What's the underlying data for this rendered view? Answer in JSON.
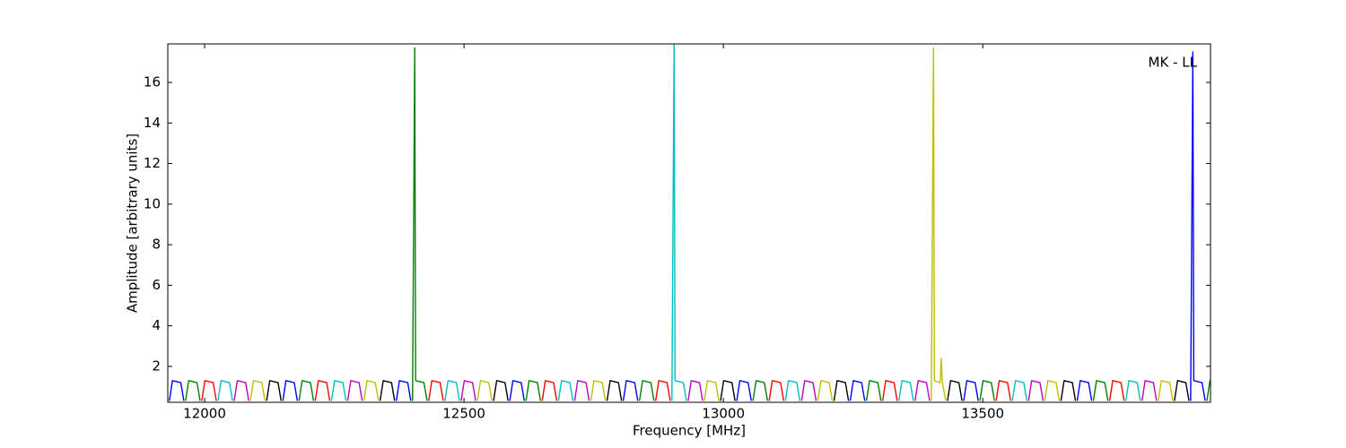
{
  "chart_data": {
    "type": "line",
    "x_label": "Frequency [MHz]",
    "y_label": "Amplitude [arbitrary units]",
    "annotation": "MK - LL",
    "xlim": [
      11929,
      13939
    ],
    "xticks": [
      12000,
      12500,
      13000,
      13500
    ],
    "ylim": [
      0.23,
      17.9
    ],
    "yticks": [
      2,
      4,
      6,
      8,
      10,
      12,
      14,
      16
    ],
    "grid": false,
    "series": [
      {
        "color": "#0000ff",
        "x": [
          11932,
          11938,
          11954,
          11960,
          null,
          12150.75,
          12156.75,
          12172.75,
          12178.75,
          null,
          12369.5,
          12375.5,
          12391.5,
          12397.5,
          null,
          12588.25,
          12594.25,
          12610.25,
          12616.25,
          null,
          12807,
          12813,
          12829,
          12835,
          null,
          13025.75,
          13031.75,
          13047.75,
          13053.75,
          null,
          13244.5,
          13250.5,
          13266.5,
          13272.5,
          null,
          13463.25,
          13469.25,
          13485.25,
          13491.25,
          null,
          13682,
          13688,
          13704,
          13710,
          null,
          13900.75,
          13905,
          13906.75,
          13922.75,
          13928.75
        ],
        "values": [
          0.3,
          1.3,
          1.2,
          0.3,
          null,
          0.3,
          1.3,
          1.2,
          0.3,
          null,
          0.3,
          1.3,
          1.2,
          0.3,
          null,
          0.3,
          1.3,
          1.2,
          0.3,
          null,
          0.3,
          1.3,
          1.2,
          0.3,
          null,
          0.3,
          1.3,
          1.2,
          0.3,
          null,
          0.3,
          1.3,
          1.2,
          0.3,
          null,
          0.3,
          1.3,
          1.2,
          0.3,
          null,
          0.3,
          1.3,
          1.2,
          0.3,
          null,
          0.3,
          17.5,
          1.3,
          1.2,
          0.3
        ]
      },
      {
        "color": "#008000",
        "x": [
          11963.25,
          11969.25,
          11985.25,
          11991.25,
          null,
          12182,
          12188,
          12204,
          12210,
          null,
          12400.75,
          12405,
          12406.75,
          12422.75,
          12428.75,
          null,
          12619.5,
          12625.5,
          12641.5,
          12647.5,
          null,
          12838.25,
          12844.25,
          12860.25,
          12866.25,
          null,
          13057,
          13063,
          13079,
          13085,
          null,
          13275.75,
          13281.75,
          13297.75,
          13303.75,
          null,
          13494.5,
          13500.5,
          13516.5,
          13522.5,
          null,
          13713.25,
          13719.25,
          13735.25,
          13741.25,
          null,
          13932,
          13938,
          13954,
          13960
        ],
        "values": [
          0.3,
          1.3,
          1.2,
          0.3,
          null,
          0.3,
          1.3,
          1.2,
          0.3,
          null,
          0.3,
          17.7,
          1.3,
          1.2,
          0.3,
          null,
          0.3,
          1.3,
          1.2,
          0.3,
          null,
          0.3,
          1.3,
          1.2,
          0.3,
          null,
          0.3,
          1.3,
          1.2,
          0.3,
          null,
          0.3,
          1.3,
          1.2,
          0.3,
          null,
          0.3,
          1.3,
          1.2,
          0.3,
          null,
          0.3,
          1.3,
          1.2,
          0.3,
          null,
          0.3,
          1.3,
          1.2,
          0.3
        ]
      },
      {
        "color": "#ff0000",
        "x": [
          11994.5,
          12000.5,
          12016.5,
          12022.5,
          null,
          12213.25,
          12219.25,
          12235.25,
          12241.25,
          null,
          12432,
          12438,
          12454,
          12460,
          null,
          12650.75,
          12656.75,
          12672.75,
          12678.75,
          null,
          12869.5,
          12875.5,
          12891.5,
          12897.5,
          null,
          13088.25,
          13094.25,
          13110.25,
          13116.25,
          null,
          13307,
          13313,
          13329,
          13335,
          null,
          13525.75,
          13531.75,
          13547.75,
          13553.75,
          null,
          13744.5,
          13750.5,
          13766.5,
          13772.5
        ],
        "values": [
          0.3,
          1.3,
          1.2,
          0.3,
          null,
          0.3,
          1.3,
          1.2,
          0.3,
          null,
          0.3,
          1.3,
          1.2,
          0.3,
          null,
          0.3,
          1.3,
          1.2,
          0.3,
          null,
          0.3,
          1.3,
          1.2,
          0.3,
          null,
          0.3,
          1.3,
          1.2,
          0.3,
          null,
          0.3,
          1.3,
          1.2,
          0.3,
          null,
          0.3,
          1.3,
          1.2,
          0.3,
          null,
          0.3,
          1.3,
          1.2,
          0.3
        ]
      },
      {
        "color": "#00bfbf",
        "x": [
          12025.75,
          12031.75,
          12047.75,
          12053.75,
          null,
          12244.5,
          12250.5,
          12266.5,
          12272.5,
          null,
          12463.25,
          12469.25,
          12485.25,
          12491.25,
          null,
          12682,
          12688,
          12704,
          12710,
          null,
          12900.75,
          12905,
          12906.75,
          12922.75,
          12928.75,
          null,
          13119.5,
          13125.5,
          13141.5,
          13147.5,
          null,
          13338.25,
          13344.25,
          13360.25,
          13366.25,
          null,
          13557,
          13563,
          13579,
          13585,
          null,
          13775.75,
          13781.75,
          13797.75,
          13803.75
        ],
        "values": [
          0.3,
          1.3,
          1.2,
          0.3,
          null,
          0.3,
          1.3,
          1.2,
          0.3,
          null,
          0.3,
          1.3,
          1.2,
          0.3,
          null,
          0.3,
          1.3,
          1.2,
          0.3,
          null,
          0.3,
          17.9,
          1.3,
          1.2,
          0.3,
          null,
          0.3,
          1.3,
          1.2,
          0.3,
          null,
          0.3,
          1.3,
          1.2,
          0.3,
          null,
          0.3,
          1.3,
          1.2,
          0.3,
          null,
          0.3,
          1.3,
          1.2,
          0.3
        ]
      },
      {
        "color": "#bf00bf",
        "x": [
          12057,
          12063,
          12079,
          12085,
          null,
          12275.75,
          12281.75,
          12297.75,
          12303.75,
          null,
          12494.5,
          12500.5,
          12516.5,
          12522.5,
          null,
          12713.25,
          12719.25,
          12735.25,
          12741.25,
          null,
          12932,
          12938,
          12954,
          12960,
          null,
          13150.75,
          13156.75,
          13172.75,
          13178.75,
          null,
          13369.5,
          13375.5,
          13391.5,
          13397.5,
          null,
          13588.25,
          13594.25,
          13610.25,
          13616.25,
          null,
          13807,
          13813,
          13829,
          13835
        ],
        "values": [
          0.3,
          1.3,
          1.2,
          0.3,
          null,
          0.3,
          1.3,
          1.2,
          0.3,
          null,
          0.3,
          1.3,
          1.2,
          0.3,
          null,
          0.3,
          1.3,
          1.2,
          0.3,
          null,
          0.3,
          1.3,
          1.2,
          0.3,
          null,
          0.3,
          1.3,
          1.2,
          0.3,
          null,
          0.3,
          1.3,
          1.2,
          0.3,
          null,
          0.3,
          1.3,
          1.2,
          0.3,
          null,
          0.3,
          1.3,
          1.2,
          0.3
        ]
      },
      {
        "color": "#bfbf00",
        "x": [
          12088.25,
          12094.25,
          12110.25,
          12116.25,
          null,
          12307,
          12313,
          12329,
          12335,
          null,
          12525.75,
          12531.75,
          12547.75,
          12553.75,
          null,
          12744.5,
          12750.5,
          12766.5,
          12772.5,
          null,
          12963.25,
          12969.25,
          12985.25,
          12991.25,
          null,
          13182,
          13188,
          13204,
          13210,
          null,
          13400.75,
          13405,
          13406.75,
          13418,
          13420,
          13422,
          13428.75,
          null,
          13619.5,
          13625.5,
          13641.5,
          13647.5,
          null,
          13838.25,
          13844.25,
          13860.25,
          13866.25
        ],
        "values": [
          0.3,
          1.3,
          1.2,
          0.3,
          null,
          0.3,
          1.3,
          1.2,
          0.3,
          null,
          0.3,
          1.3,
          1.2,
          0.3,
          null,
          0.3,
          1.3,
          1.2,
          0.3,
          null,
          0.3,
          1.3,
          1.2,
          0.3,
          null,
          0.3,
          1.3,
          1.2,
          0.3,
          null,
          0.3,
          17.7,
          1.3,
          1.2,
          2.4,
          1.2,
          0.3,
          null,
          0.3,
          1.3,
          1.2,
          0.3,
          null,
          0.3,
          1.3,
          1.2,
          0.3
        ]
      },
      {
        "color": "#000000",
        "x": [
          12119.5,
          12125.5,
          12141.5,
          12147.5,
          null,
          12338.25,
          12344.25,
          12360.25,
          12366.25,
          null,
          12557,
          12563,
          12579,
          12585,
          null,
          12775.75,
          12781.75,
          12797.75,
          12803.75,
          null,
          12994.5,
          13000.5,
          13016.5,
          13022.5,
          null,
          13213.25,
          13219.25,
          13235.25,
          13241.25,
          null,
          13432,
          13438,
          13454,
          13460,
          null,
          13650.75,
          13656.75,
          13672.75,
          13678.75,
          null,
          13869.5,
          13875.5,
          13891.5,
          13897.5
        ],
        "values": [
          0.3,
          1.3,
          1.2,
          0.3,
          null,
          0.3,
          1.3,
          1.2,
          0.3,
          null,
          0.3,
          1.3,
          1.2,
          0.3,
          null,
          0.3,
          1.3,
          1.2,
          0.3,
          null,
          0.3,
          1.3,
          1.2,
          0.3,
          null,
          0.3,
          1.3,
          1.2,
          0.3,
          null,
          0.3,
          1.3,
          1.2,
          0.3,
          null,
          0.3,
          1.3,
          1.2,
          0.3,
          null,
          0.3,
          1.3,
          1.2,
          0.3
        ]
      }
    ]
  }
}
